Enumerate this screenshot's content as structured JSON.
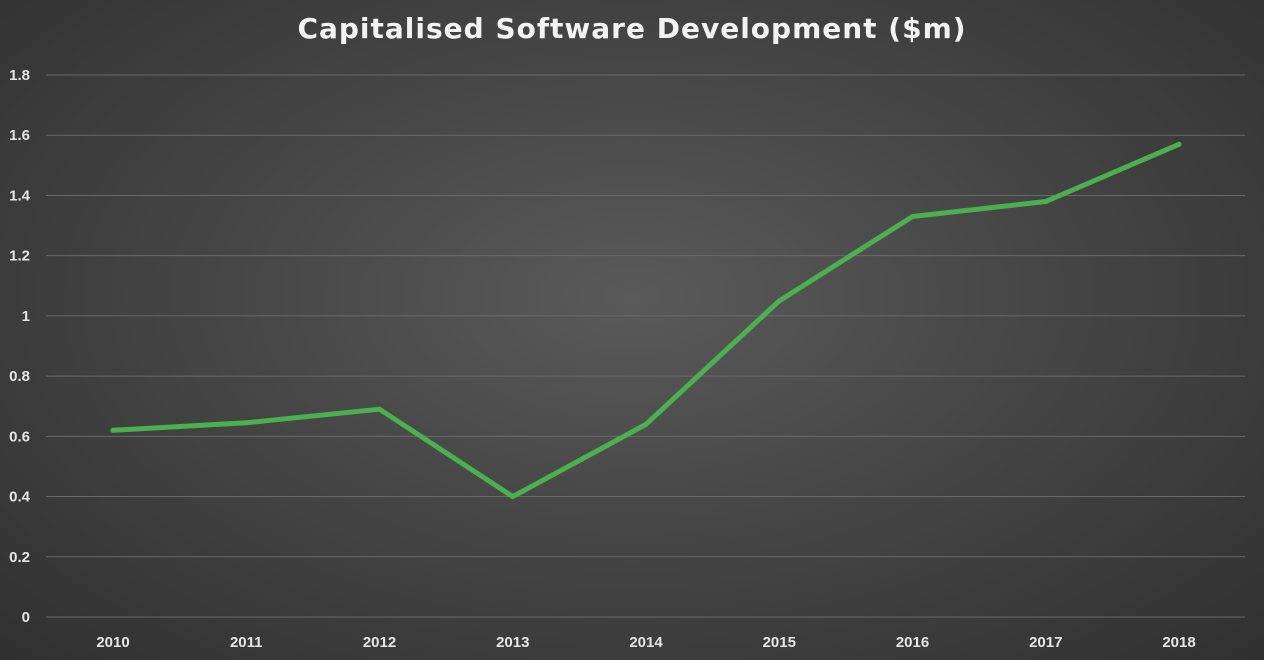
{
  "chart_data": {
    "type": "line",
    "title": "Capitalised Software Development ($m)",
    "xlabel": "",
    "ylabel": "",
    "categories": [
      "2010",
      "2011",
      "2012",
      "2013",
      "2014",
      "2015",
      "2016",
      "2017",
      "2018"
    ],
    "series": [
      {
        "name": "Capitalised Software Development",
        "values": [
          0.62,
          0.645,
          0.69,
          0.4,
          0.64,
          1.05,
          1.33,
          1.38,
          1.57
        ],
        "color": "#4caf50"
      }
    ],
    "ylim": [
      0,
      1.8
    ],
    "yticks": [
      0,
      0.2,
      0.4,
      0.6,
      0.8,
      1,
      1.2,
      1.4,
      1.6,
      1.8
    ],
    "ytick_labels": [
      "0",
      "0.2",
      "0.4",
      "0.6",
      "0.8",
      "1",
      "1.2",
      "1.4",
      "1.6",
      "1.8"
    ],
    "grid": true,
    "legend": "none"
  },
  "colors": {
    "line": "#4caf50",
    "grid": "#6a6a6a",
    "text": "#e6e6e6"
  }
}
